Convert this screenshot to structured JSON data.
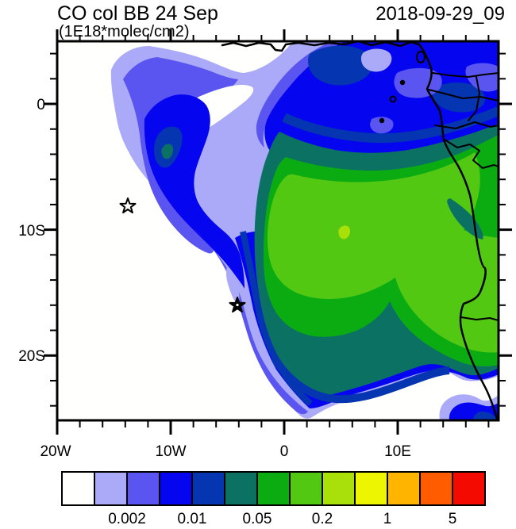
{
  "header": {
    "title": "CO col BB 24 Sep",
    "subtitle": "(1E18*molec/cm2)",
    "date": "2018-09-29_09"
  },
  "axes": {
    "y_ticks": [
      "0",
      "10S",
      "20S"
    ],
    "x_ticks": [
      "20W",
      "10W",
      "0",
      "10E"
    ]
  },
  "colorbar": {
    "labels": [
      "0.002",
      "0.01",
      "0.05",
      "0.2",
      "1",
      "5"
    ],
    "colors": [
      "#fffffe",
      "#aaaaf8",
      "#5a55f0",
      "#0505f0",
      "#0535b0",
      "#0b7263",
      "#0bac12",
      "#52c813",
      "#aae00a",
      "#eef500",
      "#ffb400",
      "#ff5c00",
      "#f50a00"
    ]
  },
  "map": {
    "star_markers": [
      {
        "style": "open-star",
        "approx_lon": "14W",
        "approx_lat": "8S"
      },
      {
        "style": "filled-star",
        "approx_lon": "4W",
        "approx_lat": "16S"
      }
    ],
    "line_color": "#000000"
  },
  "chart_data": {
    "type": "heatmap",
    "subtype": "filled_contour_map",
    "title": "CO col BB 24 Sep",
    "units": "(1E18*molec/cm2)",
    "run_timestamp": "2018-09-29_09",
    "x_axis": {
      "kind": "longitude",
      "tick_labels": [
        "20W",
        "10W",
        "0",
        "10E"
      ],
      "minor_tick_interval_deg": 2,
      "approx_range": [
        "20W",
        "18E"
      ]
    },
    "y_axis": {
      "kind": "latitude",
      "tick_labels": [
        "0",
        "10S",
        "20S"
      ],
      "minor_tick_interval_deg": 2,
      "approx_range": [
        "5N",
        "25S"
      ]
    },
    "colorbar": {
      "n_bins": 13,
      "boundary_labels": [
        0.002,
        0.01,
        0.05,
        0.2,
        1,
        5
      ],
      "levels_inferred": [
        0.001,
        0.002,
        0.005,
        0.01,
        0.02,
        0.05,
        0.1,
        0.2,
        0.5,
        1,
        2,
        5
      ],
      "bin_colors": [
        "#fffffe",
        "#aaaaf8",
        "#5a55f0",
        "#0505f0",
        "#0535b0",
        "#0b7263",
        "#0bac12",
        "#52c813",
        "#aae00a",
        "#eef500",
        "#ffb400",
        "#ff5c00",
        "#f50a00"
      ],
      "position": "bottom-horizontal"
    },
    "field_summary": "CO column plume over the South Atlantic / central-southern Africa: bright-green core (~0.2-0.5) over Congo/Angola with a small yellow-green maximum (~0.5-1) near 5E,10S, teal-green ring, blue plume arcing southwest over the ocean, lavender fringes below 0.002; white background elsewhere",
    "map_overlays": [
      "African west coastline",
      "country borders",
      "Gulf of Guinea islands",
      "two star markers"
    ]
  }
}
